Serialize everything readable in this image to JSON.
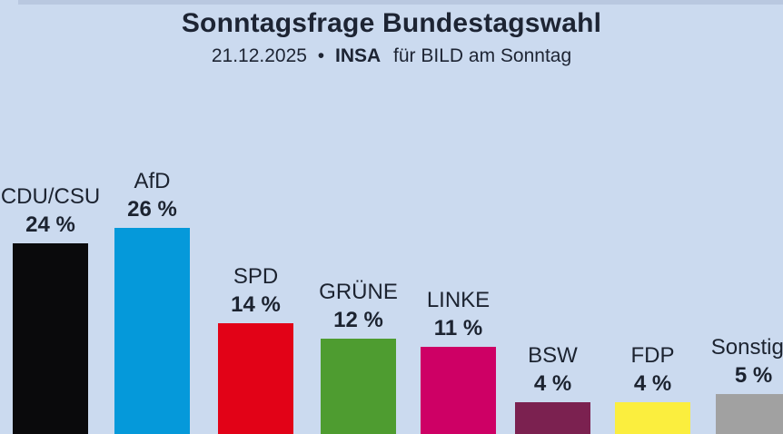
{
  "header": {
    "title": "Sonntagsfrage Bundestagswahl",
    "subtitle": {
      "date": "21.12.2025",
      "separator": "•",
      "source": "INSA",
      "rest": "für BILD am Sonntag"
    }
  },
  "colors": {
    "background": "#cbdaef",
    "top_band": "#b9c8e0",
    "text": "#1c2330"
  },
  "chart_data": {
    "type": "bar",
    "title": "Sonntagsfrage Bundestagswahl",
    "subtitle": "21.12.2025 • INSA für BILD am Sonntag",
    "categories": [
      "CDU/CSU",
      "AfD",
      "SPD",
      "GRÜNE",
      "LINKE",
      "BSW",
      "FDP",
      "Sonstige"
    ],
    "values": [
      24,
      26,
      14,
      12,
      11,
      4,
      4,
      5
    ],
    "value_labels": [
      "24 %",
      "26 %",
      "14 %",
      "12 %",
      "11 %",
      "4 %",
      "4 %",
      "5 %"
    ],
    "ylabel": "",
    "xlabel": "",
    "grid": false,
    "legend": false,
    "baseline_at_bottom_edge": true,
    "parties": [
      {
        "name": "CDU/CSU",
        "value": 24,
        "label": "24 %",
        "color": "#0a0a0c"
      },
      {
        "name": "AfD",
        "value": 26,
        "label": "26 %",
        "color": "#0599da"
      },
      {
        "name": "SPD",
        "value": 14,
        "label": "14 %",
        "color": "#e20217"
      },
      {
        "name": "GRÜNE",
        "value": 12,
        "label": "12 %",
        "color": "#4e9c30"
      },
      {
        "name": "LINKE",
        "value": 11,
        "label": "11 %",
        "color": "#ce0065"
      },
      {
        "name": "BSW",
        "value": 4,
        "label": "4 %",
        "color": "#7b2150"
      },
      {
        "name": "FDP",
        "value": 4,
        "label": "4 %",
        "color": "#fbee3e"
      },
      {
        "name": "Sonstige",
        "value": 5,
        "label": "5 %",
        "color": "#a1a1a1"
      }
    ]
  }
}
